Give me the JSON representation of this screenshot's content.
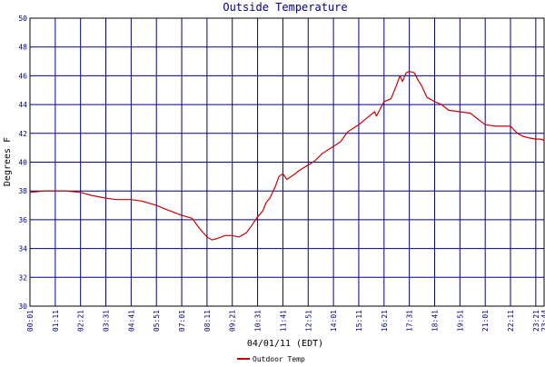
{
  "chart_data": {
    "type": "line",
    "title": "Outside Temperature",
    "xlabel": "04/01/11 (EDT)",
    "ylabel": "Degrees F",
    "ylim": [
      30,
      50
    ],
    "yticks": [
      30,
      32,
      34,
      36,
      38,
      40,
      42,
      44,
      46,
      48,
      50
    ],
    "x_start": "00:01",
    "x_end": "23:44",
    "xticks": [
      "00:01",
      "01:11",
      "02:21",
      "03:31",
      "04:41",
      "05:51",
      "07:01",
      "08:11",
      "09:21",
      "10:31",
      "11:41",
      "12:51",
      "14:01",
      "15:11",
      "16:21",
      "17:31",
      "18:41",
      "19:51",
      "21:01",
      "22:11",
      "23:21",
      "23:44"
    ],
    "grid": true,
    "legend_position": "bottom-left",
    "colors": {
      "series": "#cc0000",
      "grid": "#000080",
      "text": "#000080",
      "axis": "#000000"
    },
    "series": [
      {
        "name": "Outdoor Temp",
        "points": [
          [
            "00:01",
            37.9
          ],
          [
            "00:40",
            38.0
          ],
          [
            "01:11",
            38.0
          ],
          [
            "01:40",
            38.0
          ],
          [
            "02:21",
            37.9
          ],
          [
            "02:50",
            37.7
          ],
          [
            "03:31",
            37.5
          ],
          [
            "04:00",
            37.4
          ],
          [
            "04:41",
            37.4
          ],
          [
            "05:10",
            37.3
          ],
          [
            "05:51",
            37.0
          ],
          [
            "06:20",
            36.7
          ],
          [
            "07:01",
            36.3
          ],
          [
            "07:30",
            36.1
          ],
          [
            "07:50",
            35.4
          ],
          [
            "08:11",
            34.8
          ],
          [
            "08:25",
            34.6
          ],
          [
            "08:40",
            34.7
          ],
          [
            "09:00",
            34.9
          ],
          [
            "09:21",
            34.9
          ],
          [
            "09:40",
            34.8
          ],
          [
            "10:00",
            35.1
          ],
          [
            "10:15",
            35.6
          ],
          [
            "10:31",
            36.2
          ],
          [
            "10:45",
            36.6
          ],
          [
            "10:55",
            37.2
          ],
          [
            "11:05",
            37.5
          ],
          [
            "11:20",
            38.3
          ],
          [
            "11:30",
            39.0
          ],
          [
            "11:41",
            39.2
          ],
          [
            "11:52",
            38.8
          ],
          [
            "12:10",
            39.1
          ],
          [
            "12:25",
            39.4
          ],
          [
            "12:51",
            39.8
          ],
          [
            "13:10",
            40.1
          ],
          [
            "13:30",
            40.6
          ],
          [
            "14:01",
            41.1
          ],
          [
            "14:20",
            41.4
          ],
          [
            "14:40",
            42.1
          ],
          [
            "15:11",
            42.6
          ],
          [
            "15:40",
            43.2
          ],
          [
            "15:55",
            43.5
          ],
          [
            "16:00",
            43.2
          ],
          [
            "16:21",
            44.2
          ],
          [
            "16:40",
            44.4
          ],
          [
            "16:55",
            45.3
          ],
          [
            "17:05",
            46.0
          ],
          [
            "17:12",
            45.6
          ],
          [
            "17:22",
            46.2
          ],
          [
            "17:31",
            46.3
          ],
          [
            "17:45",
            46.2
          ],
          [
            "17:55",
            45.7
          ],
          [
            "18:05",
            45.3
          ],
          [
            "18:20",
            44.5
          ],
          [
            "18:41",
            44.2
          ],
          [
            "19:00",
            44.0
          ],
          [
            "19:20",
            43.6
          ],
          [
            "19:51",
            43.5
          ],
          [
            "20:20",
            43.4
          ],
          [
            "20:40",
            43.0
          ],
          [
            "21:01",
            42.6
          ],
          [
            "21:30",
            42.5
          ],
          [
            "22:11",
            42.5
          ],
          [
            "22:30",
            42.0
          ],
          [
            "22:45",
            41.8
          ],
          [
            "23:00",
            41.7
          ],
          [
            "23:21",
            41.6
          ],
          [
            "23:35",
            41.6
          ],
          [
            "23:44",
            41.5
          ]
        ]
      }
    ]
  }
}
